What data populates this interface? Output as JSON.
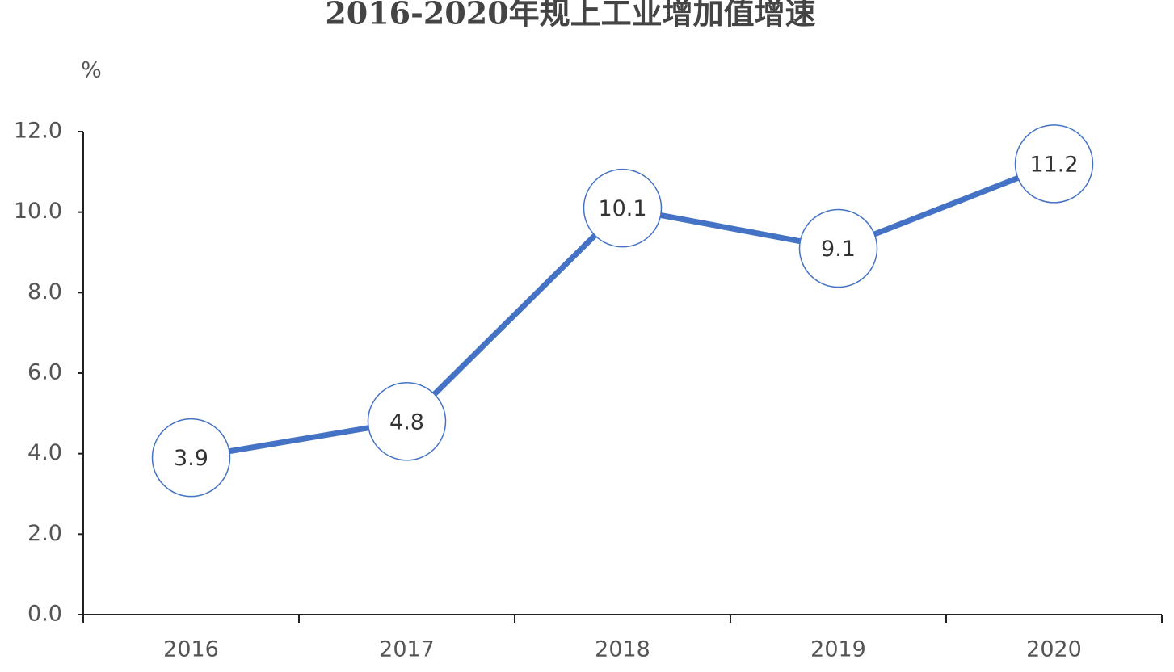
{
  "chart_data": {
    "type": "line",
    "title": "2016-2020年规上工业增加值增速",
    "y_label": "%",
    "categories": [
      "2016",
      "2017",
      "2018",
      "2019",
      "2020"
    ],
    "values": [
      3.9,
      4.8,
      10.1,
      9.1,
      11.2
    ],
    "color": "#4472c4",
    "ylim": [
      0,
      12
    ],
    "yticks": [
      {
        "value": 0,
        "label": "0.0"
      },
      {
        "value": 2,
        "label": "2.0"
      },
      {
        "value": 4,
        "label": "4.0"
      },
      {
        "value": 6,
        "label": "6.0"
      },
      {
        "value": 8,
        "label": "8.0"
      },
      {
        "value": 10,
        "label": "10.0"
      },
      {
        "value": 12,
        "label": "12.0"
      }
    ],
    "grid": false
  }
}
